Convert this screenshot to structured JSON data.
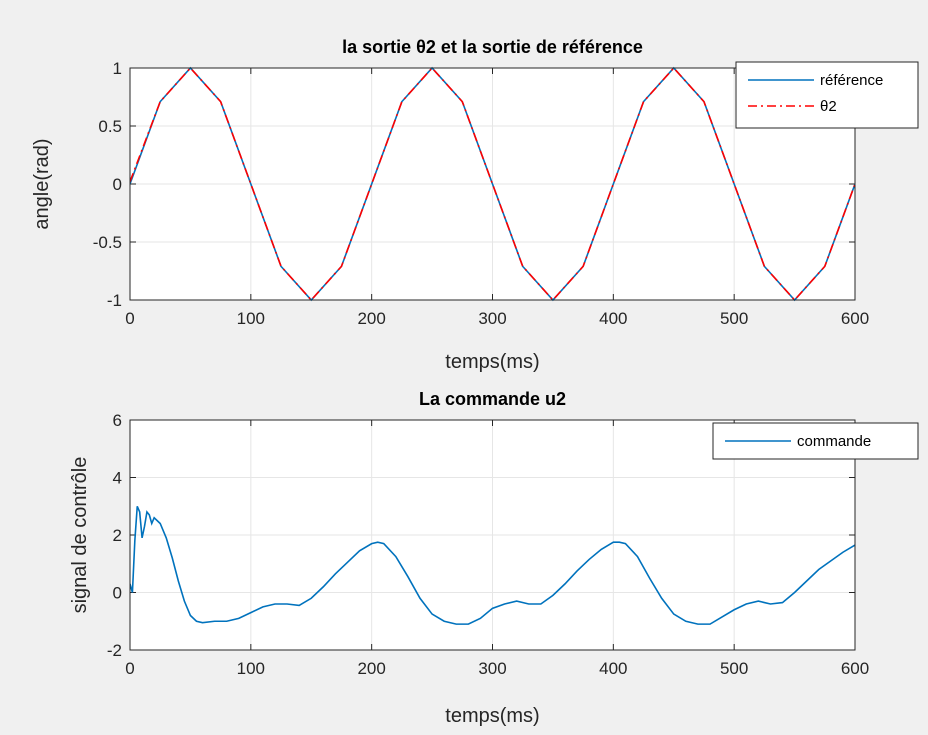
{
  "chart_data": [
    {
      "type": "line",
      "title": "la sortie θ2 et la sortie de référence",
      "xlabel": "temps(ms)",
      "ylabel": "angle(rad)",
      "xlim": [
        0,
        600
      ],
      "ylim": [
        -1,
        1
      ],
      "x_ticks": [
        "0",
        "100",
        "200",
        "300",
        "400",
        "500",
        "600"
      ],
      "y_ticks": [
        "-1",
        "-0.5",
        "0",
        "0.5",
        "1"
      ],
      "grid": true,
      "legend_position": "top-right",
      "series": [
        {
          "name": "référence",
          "color": "#0072bd",
          "style": "solid",
          "x": [
            0,
            25,
            50,
            75,
            100,
            125,
            150,
            175,
            200,
            225,
            250,
            275,
            300,
            325,
            350,
            375,
            400,
            425,
            450,
            475,
            500,
            525,
            550,
            575,
            600
          ],
          "y": [
            0,
            0.71,
            1,
            0.71,
            0,
            -0.71,
            -1,
            -0.71,
            0,
            0.71,
            1,
            0.71,
            0,
            -0.71,
            -1,
            -0.71,
            0,
            0.71,
            1,
            0.71,
            0,
            -0.71,
            -1,
            -0.71,
            0
          ]
        },
        {
          "name": "θ2",
          "color": "#ff0000",
          "style": "dashdot",
          "x": [
            0,
            25,
            50,
            75,
            100,
            125,
            150,
            175,
            200,
            225,
            250,
            275,
            300,
            325,
            350,
            375,
            400,
            425,
            450,
            475,
            500,
            525,
            550,
            575,
            600
          ],
          "y": [
            0.02,
            0.71,
            1,
            0.71,
            0,
            -0.71,
            -1,
            -0.71,
            0,
            0.71,
            1,
            0.71,
            0,
            -0.71,
            -1,
            -0.71,
            0,
            0.71,
            1,
            0.71,
            0,
            -0.71,
            -1,
            -0.71,
            0
          ]
        }
      ]
    },
    {
      "type": "line",
      "title": "La commande u2",
      "xlabel": "temps(ms)",
      "ylabel": "signal de contrôle",
      "xlim": [
        0,
        600
      ],
      "ylim": [
        -2,
        6
      ],
      "x_ticks": [
        "0",
        "100",
        "200",
        "300",
        "400",
        "500",
        "600"
      ],
      "y_ticks": [
        "-2",
        "0",
        "2",
        "4",
        "6"
      ],
      "grid": true,
      "legend_position": "top-right",
      "series": [
        {
          "name": "commande",
          "color": "#0072bd",
          "style": "solid",
          "x": [
            0,
            2,
            4,
            6,
            8,
            10,
            12,
            14,
            16,
            18,
            20,
            25,
            30,
            35,
            40,
            45,
            50,
            55,
            60,
            70,
            80,
            90,
            100,
            110,
            120,
            130,
            140,
            150,
            160,
            170,
            180,
            190,
            200,
            205,
            210,
            220,
            230,
            240,
            250,
            260,
            270,
            280,
            290,
            300,
            310,
            320,
            330,
            340,
            350,
            360,
            370,
            380,
            390,
            400,
            405,
            410,
            420,
            430,
            440,
            450,
            460,
            470,
            480,
            490,
            500,
            510,
            520,
            530,
            540,
            550,
            560,
            570,
            580,
            590,
            600
          ],
          "y": [
            0.3,
            0,
            1.8,
            3.0,
            2.8,
            1.9,
            2.3,
            2.8,
            2.7,
            2.4,
            2.6,
            2.4,
            1.9,
            1.2,
            0.4,
            -0.3,
            -0.8,
            -1.0,
            -1.05,
            -1.0,
            -1.0,
            -0.9,
            -0.7,
            -0.5,
            -0.4,
            -0.4,
            -0.45,
            -0.2,
            0.2,
            0.65,
            1.05,
            1.45,
            1.7,
            1.75,
            1.7,
            1.25,
            0.55,
            -0.2,
            -0.75,
            -1.0,
            -1.1,
            -1.1,
            -0.9,
            -0.55,
            -0.4,
            -0.3,
            -0.4,
            -0.4,
            -0.1,
            0.3,
            0.75,
            1.15,
            1.5,
            1.75,
            1.75,
            1.7,
            1.25,
            0.5,
            -0.2,
            -0.75,
            -1.0,
            -1.1,
            -1.1,
            -0.85,
            -0.6,
            -0.4,
            -0.3,
            -0.4,
            -0.35,
            0.0,
            0.4,
            0.8,
            1.1,
            1.4,
            1.65
          ]
        }
      ]
    }
  ]
}
